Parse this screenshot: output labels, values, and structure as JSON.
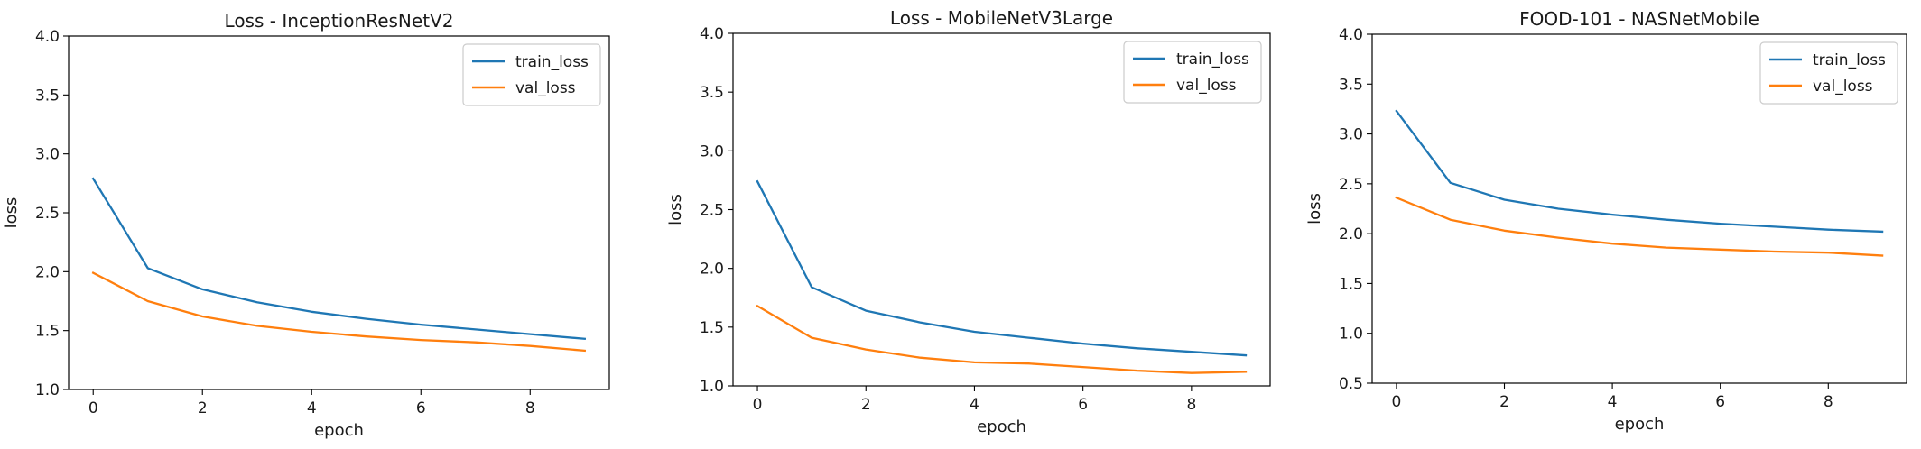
{
  "chart_data": [
    {
      "type": "line",
      "title": "Loss - InceptionResNetV2",
      "xlabel": "epoch",
      "ylabel": "loss",
      "x": [
        0,
        1,
        2,
        3,
        4,
        5,
        6,
        7,
        8,
        9
      ],
      "xticks": [
        "0",
        "2",
        "4",
        "6",
        "8"
      ],
      "yticks": [
        "1.0",
        "1.5",
        "2.0",
        "2.5",
        "3.0",
        "3.5",
        "4.0"
      ],
      "xlim": [
        -0.45,
        9.45
      ],
      "ylim": [
        1.0,
        4.0
      ],
      "legend_position": "top-right",
      "series": [
        {
          "name": "train_loss",
          "color": "#1f77b4",
          "values": [
            2.79,
            2.03,
            1.85,
            1.74,
            1.66,
            1.6,
            1.55,
            1.51,
            1.47,
            1.43
          ]
        },
        {
          "name": "val_loss",
          "color": "#ff7f0e",
          "values": [
            1.99,
            1.75,
            1.62,
            1.54,
            1.49,
            1.45,
            1.42,
            1.4,
            1.37,
            1.33
          ]
        }
      ]
    },
    {
      "type": "line",
      "title": "Loss - MobileNetV3Large",
      "xlabel": "epoch",
      "ylabel": "loss",
      "x": [
        0,
        1,
        2,
        3,
        4,
        5,
        6,
        7,
        8,
        9
      ],
      "xticks": [
        "0",
        "2",
        "4",
        "6",
        "8"
      ],
      "yticks": [
        "1.0",
        "1.5",
        "2.0",
        "2.5",
        "3.0",
        "3.5",
        "4.0"
      ],
      "xlim": [
        -0.45,
        9.45
      ],
      "ylim": [
        1.0,
        4.0
      ],
      "legend_position": "top-right",
      "series": [
        {
          "name": "train_loss",
          "color": "#1f77b4",
          "values": [
            2.74,
            1.84,
            1.64,
            1.54,
            1.46,
            1.41,
            1.36,
            1.32,
            1.29,
            1.26
          ]
        },
        {
          "name": "val_loss",
          "color": "#ff7f0e",
          "values": [
            1.68,
            1.41,
            1.31,
            1.24,
            1.2,
            1.19,
            1.16,
            1.13,
            1.11,
            1.12
          ]
        }
      ]
    },
    {
      "type": "line",
      "title": "FOOD-101 - NASNetMobile",
      "xlabel": "epoch",
      "ylabel": "loss",
      "x": [
        0,
        1,
        2,
        3,
        4,
        5,
        6,
        7,
        8,
        9
      ],
      "xticks": [
        "0",
        "2",
        "4",
        "6",
        "8"
      ],
      "yticks": [
        "0.5",
        "1.0",
        "1.5",
        "2.0",
        "2.5",
        "3.0",
        "3.5",
        "4.0"
      ],
      "xlim": [
        -0.45,
        9.45
      ],
      "ylim": [
        0.5,
        4.0
      ],
      "legend_position": "top-right",
      "series": [
        {
          "name": "train_loss",
          "color": "#1f77b4",
          "values": [
            3.23,
            2.51,
            2.34,
            2.25,
            2.19,
            2.14,
            2.1,
            2.07,
            2.04,
            2.02
          ]
        },
        {
          "name": "val_loss",
          "color": "#ff7f0e",
          "values": [
            2.36,
            2.14,
            2.03,
            1.96,
            1.9,
            1.86,
            1.84,
            1.82,
            1.81,
            1.78
          ]
        }
      ]
    }
  ]
}
